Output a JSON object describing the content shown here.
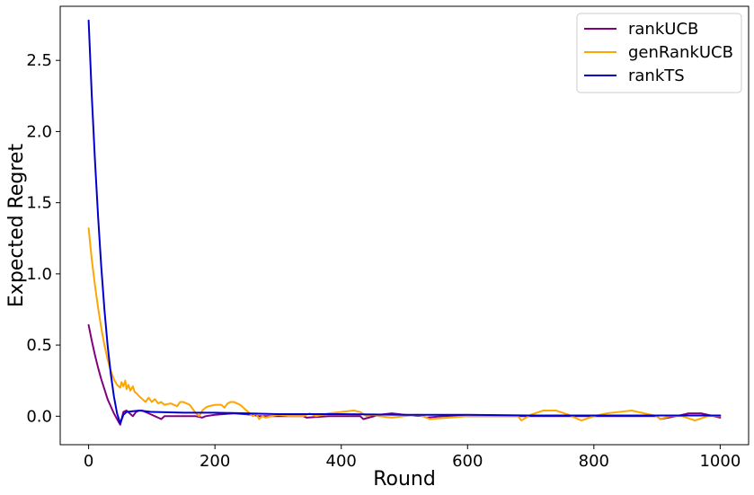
{
  "chart_data": {
    "type": "line",
    "title": "",
    "xlabel": "Round",
    "ylabel": "Expected Regret",
    "xlim": [
      -45,
      1045
    ],
    "ylim": [
      -0.2,
      2.88
    ],
    "xticks": [
      0,
      200,
      400,
      600,
      800,
      1000
    ],
    "xtick_labels": [
      "0",
      "200",
      "400",
      "600",
      "800",
      "1000"
    ],
    "yticks": [
      0.0,
      0.5,
      1.0,
      1.5,
      2.0,
      2.5
    ],
    "ytick_labels": [
      "0.0",
      "0.5",
      "1.0",
      "1.5",
      "2.0",
      "2.5"
    ],
    "grid": false,
    "legend_position": "top-right",
    "series": [
      {
        "name": "rankUCB",
        "color": "#800080",
        "x": [
          0,
          5,
          10,
          15,
          20,
          25,
          30,
          35,
          40,
          45,
          50,
          55,
          60,
          65,
          70,
          75,
          80,
          85,
          90,
          95,
          100,
          105,
          110,
          115,
          120,
          125,
          130,
          150,
          170,
          180,
          185,
          200,
          230,
          260,
          270,
          300,
          340,
          345,
          380,
          430,
          435,
          460,
          480,
          500,
          530,
          535,
          560,
          600,
          650,
          700,
          750,
          790,
          800,
          850,
          900,
          905,
          930,
          950,
          970,
          1000
        ],
        "y": [
          0.64,
          0.53,
          0.43,
          0.34,
          0.26,
          0.19,
          0.12,
          0.07,
          0.02,
          -0.02,
          -0.06,
          0.03,
          0.04,
          0.02,
          0.0,
          0.03,
          0.04,
          0.04,
          0.03,
          0.02,
          0.01,
          0.0,
          -0.01,
          -0.02,
          0.0,
          0.0,
          0.0,
          0.0,
          0.0,
          -0.01,
          0.0,
          0.01,
          0.02,
          0.01,
          0.0,
          0.0,
          0.0,
          -0.01,
          0.0,
          0.0,
          -0.02,
          0.01,
          0.02,
          0.01,
          0.0,
          -0.01,
          0.0,
          0.0,
          0.0,
          0.0,
          0.0,
          0.0,
          0.0,
          0.0,
          0.0,
          -0.02,
          0.0,
          0.02,
          0.02,
          -0.01
        ]
      },
      {
        "name": "genRankUCB",
        "color": "#FFA500",
        "x": [
          0,
          5,
          10,
          15,
          20,
          25,
          30,
          35,
          40,
          45,
          50,
          52,
          55,
          58,
          60,
          63,
          66,
          70,
          73,
          76,
          80,
          85,
          90,
          95,
          100,
          105,
          110,
          115,
          120,
          130,
          140,
          145,
          150,
          155,
          160,
          165,
          170,
          175,
          180,
          185,
          190,
          200,
          210,
          215,
          220,
          225,
          230,
          235,
          240,
          245,
          250,
          255,
          260,
          265,
          270,
          275,
          280,
          290,
          300,
          320,
          340,
          350,
          360,
          370,
          380,
          400,
          420,
          430,
          440,
          450,
          460,
          480,
          500,
          520,
          530,
          540,
          600,
          650,
          680,
          685,
          700,
          720,
          740,
          760,
          775,
          780,
          800,
          820,
          840,
          860,
          880,
          900,
          905,
          920,
          940,
          960,
          980,
          1000
        ],
        "y": [
          1.32,
          1.1,
          0.92,
          0.76,
          0.62,
          0.5,
          0.4,
          0.32,
          0.26,
          0.22,
          0.2,
          0.24,
          0.21,
          0.25,
          0.19,
          0.22,
          0.18,
          0.21,
          0.17,
          0.16,
          0.14,
          0.12,
          0.1,
          0.13,
          0.1,
          0.12,
          0.09,
          0.1,
          0.08,
          0.09,
          0.07,
          0.1,
          0.1,
          0.09,
          0.08,
          0.05,
          0.02,
          0.0,
          0.04,
          0.06,
          0.07,
          0.08,
          0.08,
          0.06,
          0.09,
          0.1,
          0.1,
          0.09,
          0.08,
          0.06,
          0.04,
          0.02,
          0.0,
          0.02,
          -0.02,
          0.0,
          -0.01,
          0.0,
          0.01,
          0.0,
          0.0,
          0.02,
          0.0,
          0.01,
          0.02,
          0.03,
          0.04,
          0.03,
          0.0,
          0.01,
          0.0,
          -0.01,
          0.0,
          0.01,
          0.0,
          -0.02,
          0.0,
          0.0,
          0.0,
          -0.03,
          0.01,
          0.04,
          0.04,
          0.01,
          -0.02,
          -0.03,
          0.0,
          0.02,
          0.03,
          0.04,
          0.02,
          0.0,
          -0.02,
          0.0,
          0.0,
          -0.03,
          0.0,
          0.0
        ]
      },
      {
        "name": "rankTS",
        "color": "#0000CD",
        "x": [
          0,
          5,
          10,
          15,
          20,
          25,
          30,
          35,
          40,
          45,
          50,
          55,
          60,
          70,
          80,
          90,
          100,
          150,
          200,
          300,
          400,
          500,
          600,
          700,
          800,
          900,
          1000
        ],
        "y": [
          2.78,
          2.25,
          1.8,
          1.4,
          1.05,
          0.75,
          0.5,
          0.3,
          0.14,
          0.02,
          -0.05,
          0.01,
          0.03,
          0.035,
          0.04,
          0.035,
          0.03,
          0.025,
          0.025,
          0.015,
          0.015,
          0.01,
          0.01,
          0.005,
          0.005,
          0.005,
          0.005
        ]
      }
    ]
  }
}
